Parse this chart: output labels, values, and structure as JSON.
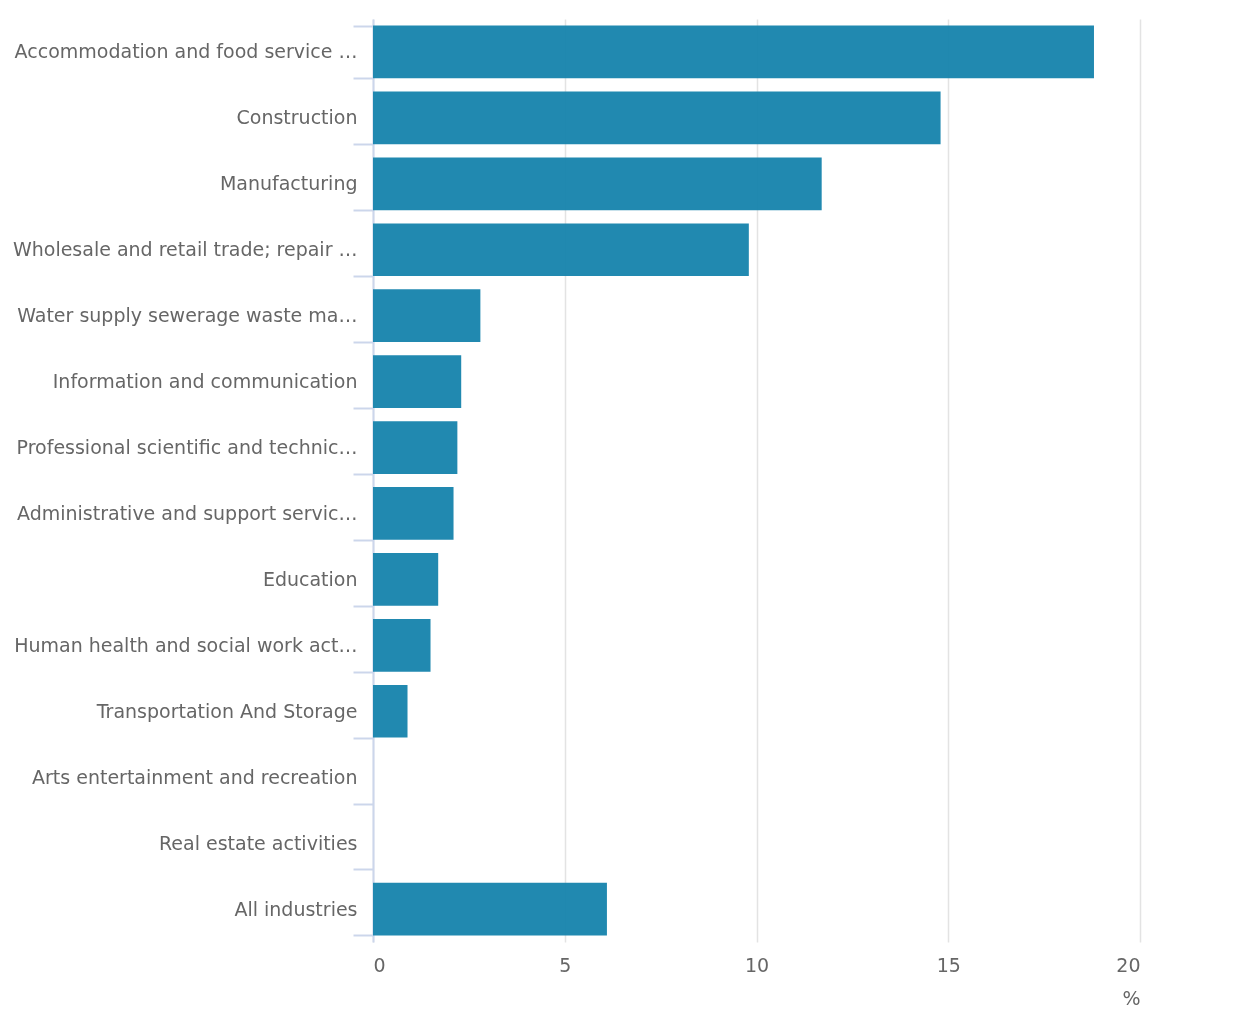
{
  "chart_data": {
    "type": "bar",
    "orientation": "horizontal",
    "xlabel": "%",
    "categories": [
      "Accommodation and food service …",
      "Construction",
      "Manufacturing",
      "Wholesale and retail trade; repair …",
      "Water supply sewerage waste ma…",
      "Information and communication",
      "Professional scientific and technic…",
      "Administrative and support servic…",
      "Education",
      "Human health and social work act…",
      "Transportation And Storage",
      "Arts entertainment and recreation",
      "Real estate activities",
      "All industries"
    ],
    "values": [
      18.8,
      14.8,
      11.7,
      9.8,
      2.8,
      2.3,
      2.2,
      2.1,
      1.7,
      1.5,
      0.9,
      0,
      0,
      6.1
    ],
    "color": "#1a85ad",
    "xlim": [
      0,
      20
    ],
    "xticks": [
      0,
      5,
      10,
      15,
      20
    ],
    "grid": "x"
  }
}
